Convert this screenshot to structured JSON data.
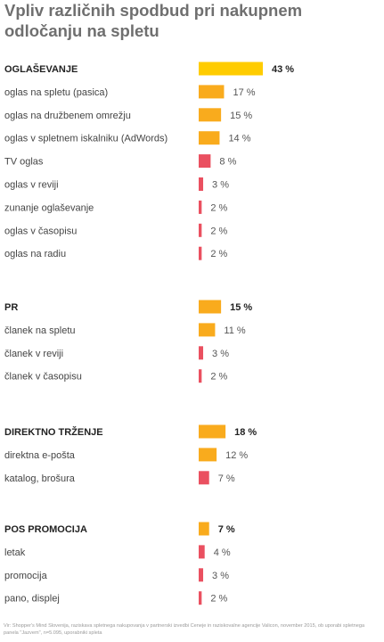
{
  "title": "Vpliv različnih spodbud pri nakupnem odločanju na spletu",
  "source": "Vir: Shopper's Mind Slovenija, raziskava spletnega nakupovanja v partnerski izvedbi Ceneje in raziskovalne agencije Valicon, november 2015, ob uporabi spletnega panela \"Jazvem\", n=5.095, uporabniki spleta",
  "colors": {
    "group_top": "#ffcc00",
    "high": "#f9ab1d",
    "low": "#ea5060",
    "label": "#444444",
    "value": "#555555"
  },
  "chart_data": {
    "type": "bar",
    "orientation": "horizontal",
    "unit": "%",
    "groups": [
      {
        "label": "OGLAŠEVANJE",
        "value": 43,
        "items": [
          {
            "label": "oglas na spletu (pasica)",
            "value": 17
          },
          {
            "label": "oglas na družbenem omrežju",
            "value": 15
          },
          {
            "label": "oglas v spletnem iskalniku (AdWords)",
            "value": 14
          },
          {
            "label": "TV oglas",
            "value": 8
          },
          {
            "label": "oglas v reviji",
            "value": 3
          },
          {
            "label": "zunanje oglaševanje",
            "value": 2
          },
          {
            "label": "oglas v časopisu",
            "value": 2
          },
          {
            "label": "oglas na radiu",
            "value": 2
          }
        ]
      },
      {
        "label": "PR",
        "value": 15,
        "items": [
          {
            "label": "članek na spletu",
            "value": 11
          },
          {
            "label": "članek v reviji",
            "value": 3
          },
          {
            "label": "članek v časopisu",
            "value": 2
          }
        ]
      },
      {
        "label": "DIREKTNO TRŽENJE",
        "value": 18,
        "items": [
          {
            "label": "direktna e-pošta",
            "value": 12
          },
          {
            "label": "katalog, brošura",
            "value": 7
          }
        ]
      },
      {
        "label": "POS PROMOCIJA",
        "value": 7,
        "items": [
          {
            "label": "letak",
            "value": 4
          },
          {
            "label": "promocija",
            "value": 3
          },
          {
            "label": "pano, displej",
            "value": 2
          }
        ]
      }
    ]
  }
}
